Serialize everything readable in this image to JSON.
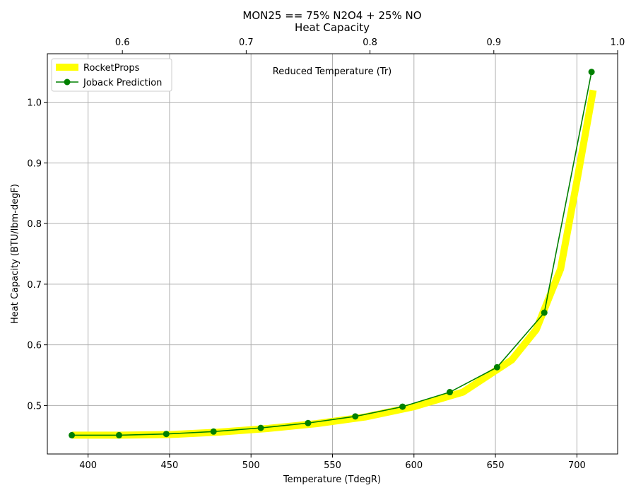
{
  "chart_data": {
    "type": "line",
    "title": "MON25 == 75% N2O4 + 25% NO",
    "subtitle": "Heat Capacity",
    "xlabel": "Temperature (TdegR)",
    "ylabel": "Heat Capacity (BTU/lbm-degF)",
    "x2label": "Reduced Temperature (Tr)",
    "xlim": [
      375,
      725
    ],
    "ylim": [
      0.42,
      1.08
    ],
    "x2lim": [
      0.5394,
      1.0
    ],
    "xticks": [
      400,
      450,
      500,
      550,
      600,
      650,
      700
    ],
    "yticks": [
      0.5,
      0.6,
      0.7,
      0.8,
      0.9,
      1.0
    ],
    "x2ticks": [
      0.6,
      0.7,
      0.8,
      0.9,
      1.0
    ],
    "grid": true,
    "legend_position": "top-left",
    "series": [
      {
        "name": "RocketProps",
        "color": "#ffff00",
        "x": [
          390,
          420,
          450,
          480,
          510,
          540,
          570,
          600,
          630,
          660,
          675,
          690,
          700,
          710
        ],
        "y": [
          0.451,
          0.451,
          0.452,
          0.456,
          0.462,
          0.47,
          0.481,
          0.498,
          0.522,
          0.575,
          0.625,
          0.725,
          0.87,
          1.02
        ]
      },
      {
        "name": "Joback Prediction",
        "color": "#008000",
        "x": [
          390,
          419,
          448,
          477,
          506,
          535,
          564,
          593,
          622,
          651,
          680,
          709
        ],
        "y": [
          0.451,
          0.451,
          0.453,
          0.457,
          0.463,
          0.471,
          0.482,
          0.498,
          0.522,
          0.563,
          0.653,
          1.05
        ]
      }
    ]
  }
}
